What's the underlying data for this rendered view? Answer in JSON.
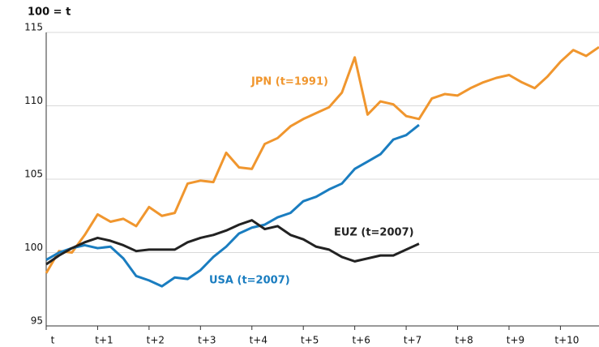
{
  "chart_data": {
    "type": "line",
    "y_axis_label": "100 = t",
    "x": [
      0,
      0.25,
      0.5,
      0.75,
      1,
      1.25,
      1.5,
      1.75,
      2,
      2.25,
      2.5,
      2.75,
      3,
      3.25,
      3.5,
      3.75,
      4,
      4.25,
      4.5,
      4.75,
      5,
      5.25,
      5.5,
      5.75,
      6,
      6.25,
      6.5,
      6.75,
      7,
      7.25,
      7.5,
      7.75,
      8,
      8.25,
      8.5,
      8.75,
      9,
      9.25,
      9.5,
      9.75,
      10,
      10.25,
      10.5,
      10.75
    ],
    "series": [
      {
        "name": "JPN (t=1991)",
        "color": "#f0962e",
        "values": [
          98.6,
          100.1,
          100.0,
          101.2,
          102.6,
          102.1,
          102.3,
          101.8,
          103.1,
          102.5,
          102.7,
          104.7,
          104.9,
          104.8,
          106.8,
          105.8,
          105.7,
          107.4,
          107.8,
          108.6,
          109.1,
          109.5,
          109.9,
          110.9,
          113.3,
          109.4,
          110.3,
          110.1,
          109.3,
          109.1,
          110.5,
          110.8,
          110.7,
          111.2,
          111.6,
          111.9,
          112.1,
          111.6,
          111.2,
          112.0,
          113.0,
          113.8,
          113.4,
          114.0
        ]
      },
      {
        "name": "USA (t=2007)",
        "color": "#1a7dc0",
        "values": [
          99.5,
          100.0,
          100.3,
          100.5,
          100.3,
          100.4,
          99.6,
          98.4,
          98.1,
          97.7,
          98.3,
          98.2,
          98.8,
          99.7,
          100.4,
          101.3,
          101.7,
          101.9,
          102.4,
          102.7,
          103.5,
          103.8,
          104.3,
          104.7,
          105.7,
          106.2,
          106.7,
          107.7,
          108.0,
          108.7,
          null,
          null,
          null,
          null,
          null,
          null,
          null,
          null,
          null,
          null,
          null,
          null,
          null,
          null
        ]
      },
      {
        "name": "EUZ (t=2007)",
        "color": "#222222",
        "values": [
          99.2,
          99.8,
          100.3,
          100.7,
          101.0,
          100.8,
          100.5,
          100.1,
          100.2,
          100.2,
          100.2,
          100.7,
          101.0,
          101.2,
          101.5,
          101.9,
          102.2,
          101.6,
          101.8,
          101.2,
          100.9,
          100.4,
          100.2,
          99.7,
          99.4,
          99.6,
          99.8,
          99.8,
          100.2,
          100.6,
          null,
          null,
          null,
          null,
          null,
          null,
          null,
          null,
          null,
          null,
          null,
          null,
          null,
          null
        ]
      }
    ],
    "xlim": [
      0,
      10.75
    ],
    "xticks": [
      {
        "value": 0,
        "label": "t"
      },
      {
        "value": 1,
        "label": "t+1"
      },
      {
        "value": 2,
        "label": "t+2"
      },
      {
        "value": 3,
        "label": "t+3"
      },
      {
        "value": 4,
        "label": "t+4"
      },
      {
        "value": 5,
        "label": "t+5"
      },
      {
        "value": 6,
        "label": "t+6"
      },
      {
        "value": 7,
        "label": "t+7"
      },
      {
        "value": 8,
        "label": "t+8"
      },
      {
        "value": 9,
        "label": "t+9"
      },
      {
        "value": 10,
        "label": "t+10"
      }
    ],
    "ylim": [
      95,
      115
    ],
    "yticks": [
      95,
      100,
      105,
      110,
      115
    ],
    "grid": true
  }
}
